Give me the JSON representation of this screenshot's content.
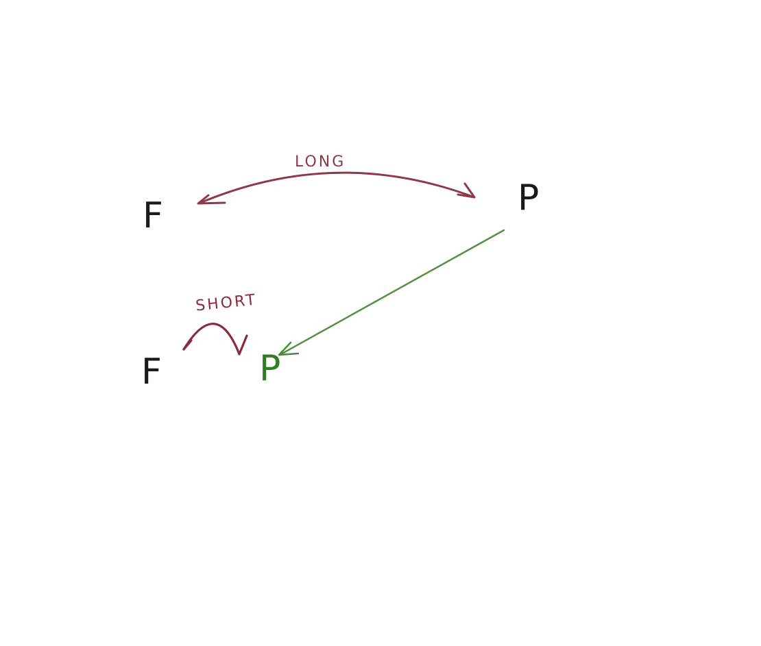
{
  "colors": {
    "background": "#ffffff",
    "ink": "#1a1a1a",
    "long_arrow": "#8e3848",
    "short_arrow": "#8a2a3c",
    "move_arrow": "#4a8a3a",
    "moved_node": "#2e7d1e"
  },
  "nodes": {
    "f_top": "F",
    "p_top": "P",
    "f_bottom": "F",
    "p_bottom": "P"
  },
  "edges": {
    "long_label": "LONG",
    "short_label": "SHORT"
  },
  "icons": {
    "long_arrow": "curved-double-arrow",
    "short_arrow": "curved-hop-arrow",
    "move_arrow": "straight-arrow"
  }
}
